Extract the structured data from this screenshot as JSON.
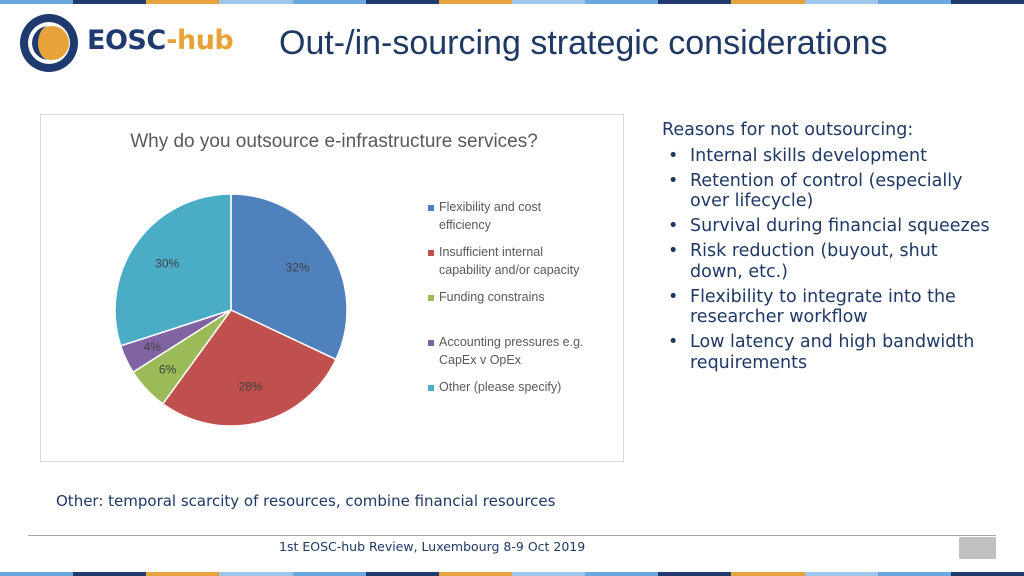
{
  "slide": {
    "logo_text_primary": "EOSC",
    "logo_text_secondary": "-hub",
    "title": "Out-/in-sourcing strategic considerations",
    "reasons_heading": "Reasons for not outsourcing:",
    "reasons": [
      "Internal skills development",
      "Retention of control (especially over lifecycle)",
      "Survival during financial squeezes",
      "Risk reduction (buyout, shut down, etc.)",
      "Flexibility to integrate into the researcher workflow",
      "Low latency and high bandwidth requirements"
    ],
    "footnote": "Other: temporal scarcity of resources, combine financial resources",
    "footer": "1st EOSC-hub Review, Luxembourg 8-9 Oct 2019"
  },
  "colors": {
    "stripe": [
      "#6aa9de",
      "#1e3a6e",
      "#e8a23a",
      "#9fc5e8"
    ],
    "title": "#1f3864",
    "logo_dark": "#1e3a6e",
    "logo_accent": "#e8a23a"
  },
  "chart_data": {
    "type": "pie",
    "title": "Why do you outsource e-infrastructure services?",
    "legend_position": "right",
    "slices": [
      {
        "label": "Flexibility and cost efficiency",
        "value": 32,
        "value_label": "32%",
        "color": "#4f81bd"
      },
      {
        "label": "Insufficient internal capability and/or capacity",
        "value": 28,
        "value_label": "28%",
        "color": "#c0504d"
      },
      {
        "label": "Funding constrains",
        "value": 6,
        "value_label": "6%",
        "color": "#9bbb59"
      },
      {
        "label": "Accounting pressures e.g. CapEx v OpEx",
        "value": 4,
        "value_label": "4%",
        "color": "#8064a2"
      },
      {
        "label": "Other (please specify)",
        "value": 30,
        "value_label": "30%",
        "color": "#4bacc6"
      }
    ]
  }
}
